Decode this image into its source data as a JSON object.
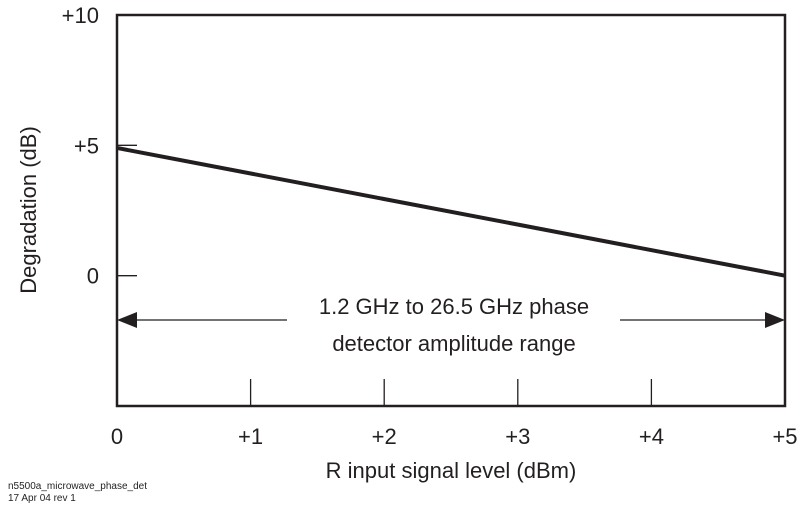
{
  "chart_data": {
    "type": "line",
    "title": "",
    "xlabel": "R input signal level (dBm)",
    "ylabel": "Degradation (dB)",
    "xlim": [
      0,
      5
    ],
    "ylim": [
      -5,
      10
    ],
    "x_ticks": [
      0,
      1,
      2,
      3,
      4,
      5
    ],
    "x_tick_labels": [
      "0",
      "+1",
      "+2",
      "+3",
      "+4",
      "+5"
    ],
    "y_ticks": [
      10,
      5,
      0
    ],
    "y_tick_labels": [
      "+10",
      "+5",
      "0"
    ],
    "grid": false,
    "series": [
      {
        "x": [
          0,
          5
        ],
        "y": [
          4.9,
          0
        ]
      }
    ],
    "annotation": {
      "lines": [
        "1.2 GHz to 26.5 GHz phase",
        "detector amplitude range"
      ],
      "range_x": [
        0,
        5
      ],
      "y": -1.7
    }
  },
  "footer": {
    "line1": "n5500a_microwave_phase_det",
    "line2": "17 Apr 04  rev 1"
  }
}
